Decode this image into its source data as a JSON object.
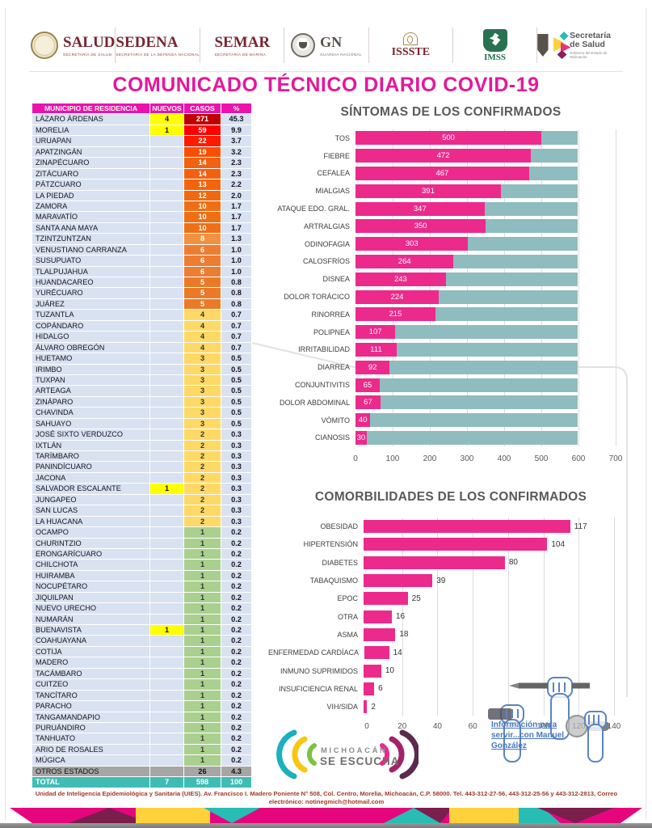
{
  "title": "COMUNICADO TÉCNICO DIARIO COVID-19",
  "header_logos": [
    {
      "name": "SALUD",
      "subtitle": "SECRETARÍA DE SALUD"
    },
    {
      "name": "SEDENA",
      "subtitle": "SECRETARÍA DE LA DEFENSA NACIONAL"
    },
    {
      "name": "SEMAR",
      "subtitle": "SECRETARÍA DE MARINA"
    },
    {
      "name": "GN",
      "subtitle": "GUARDIA NACIONAL"
    },
    {
      "name": "ISSSTE",
      "subtitle": ""
    },
    {
      "name": "IMSS",
      "subtitle": ""
    },
    {
      "name": "Secretaría de Salud",
      "subtitle": "Gobierno del Estado de Michoacán"
    }
  ],
  "table": {
    "headers": [
      "MUNICIPIO DE RESIDENCIA",
      "NUEVOS",
      "CASOS",
      "%"
    ],
    "header_bg": "#EC13AC",
    "nuevos_bg": "#FFFF00",
    "rows": [
      [
        "LÁZARO ÁRDENAS",
        "4",
        "271",
        "45.3",
        "#C00000",
        "#FFFFFF"
      ],
      [
        "MORELIA",
        "1",
        "59",
        "9.9",
        "#FF0000",
        "#FFFFFF"
      ],
      [
        "URUAPAN",
        "",
        "22",
        "3.7",
        "#FE1B00",
        "#FFFFFF"
      ],
      [
        "APATZINGÁN",
        "",
        "19",
        "3.2",
        "#F94E00",
        "#FFFFFF"
      ],
      [
        "ZINAPÉCUARO",
        "",
        "14",
        "2.3",
        "#F26011",
        "#FFFFFF"
      ],
      [
        "ZITÁCUARO",
        "",
        "14",
        "2.3",
        "#F26011",
        "#FFFFFF"
      ],
      [
        "PÁTZCUARO",
        "",
        "13",
        "2.2",
        "#F1650F",
        "#FFFFFF"
      ],
      [
        "LA PIEDAD",
        "",
        "12",
        "2.0",
        "#F0690F",
        "#FFFFFF"
      ],
      [
        "ZAMORA",
        "",
        "10",
        "1.7",
        "#EF6F15",
        "#FFFFFF"
      ],
      [
        "MARAVATÍO",
        "",
        "10",
        "1.7",
        "#EF6F15",
        "#FFFFFF"
      ],
      [
        "SANTA ANA MAYA",
        "",
        "10",
        "1.7",
        "#EF6F15",
        "#FFFFFF"
      ],
      [
        "TZINTZUNTZAN",
        "",
        "8",
        "1.3",
        "#F2913F",
        "#FFFFFF"
      ],
      [
        "VENUSTIANO CARRANZA",
        "",
        "6",
        "1.0",
        "#ED7D31",
        "#FFFFFF"
      ],
      [
        "SUSUPUATO",
        "",
        "6",
        "1.0",
        "#ED7D31",
        "#FFFFFF"
      ],
      [
        "TLALPUJAHUA",
        "",
        "6",
        "1.0",
        "#ED7D31",
        "#FFFFFF"
      ],
      [
        "HUANDACAREO",
        "",
        "5",
        "0.8",
        "#EA7A27",
        "#FFFFFF"
      ],
      [
        "YURÉCUARO",
        "",
        "5",
        "0.8",
        "#EA7A27",
        "#FFFFFF"
      ],
      [
        "JUÁREZ",
        "",
        "5",
        "0.8",
        "#EA7A27",
        "#FFFFFF"
      ],
      [
        "TUZANTLA",
        "",
        "4",
        "0.7",
        "#FFD966",
        "#333333"
      ],
      [
        "COPÁNDARO",
        "",
        "4",
        "0.7",
        "#FFD966",
        "#333333"
      ],
      [
        "HIDALGO",
        "",
        "4",
        "0.7",
        "#FFD966",
        "#333333"
      ],
      [
        "ÁLVARO OBREGÓN",
        "",
        "4",
        "0.7",
        "#FFD966",
        "#333333"
      ],
      [
        "HUETAMO",
        "",
        "3",
        "0.5",
        "#FFD966",
        "#333333"
      ],
      [
        "IRIMBO",
        "",
        "3",
        "0.5",
        "#FFD966",
        "#333333"
      ],
      [
        "TUXPAN",
        "",
        "3",
        "0.5",
        "#FFD966",
        "#333333"
      ],
      [
        "ARTEAGA",
        "",
        "3",
        "0.5",
        "#FFD966",
        "#333333"
      ],
      [
        "ZINÁPARO",
        "",
        "3",
        "0.5",
        "#FFD966",
        "#333333"
      ],
      [
        "CHAVINDA",
        "",
        "3",
        "0.5",
        "#FFD966",
        "#333333"
      ],
      [
        "SAHUAYO",
        "",
        "3",
        "0.5",
        "#FFD966",
        "#333333"
      ],
      [
        "JOSÉ SIXTO VERDUZCO",
        "",
        "2",
        "0.3",
        "#FFD966",
        "#333333"
      ],
      [
        "IXTLÁN",
        "",
        "2",
        "0.3",
        "#FFD966",
        "#333333"
      ],
      [
        "TARÍMBARO",
        "",
        "2",
        "0.3",
        "#FFD966",
        "#333333"
      ],
      [
        "PANINDÍCUARO",
        "",
        "2",
        "0.3",
        "#FFD966",
        "#333333"
      ],
      [
        "JACONA",
        "",
        "2",
        "0.3",
        "#FFD966",
        "#333333"
      ],
      [
        "SALVADOR ESCALANTE",
        "1",
        "2",
        "0.3",
        "#FFD966",
        "#333333"
      ],
      [
        "JUNGAPEO",
        "",
        "2",
        "0.3",
        "#FFD966",
        "#333333"
      ],
      [
        "SAN LUCAS",
        "",
        "2",
        "0.3",
        "#FFD966",
        "#333333"
      ],
      [
        "LA HUACANA",
        "",
        "2",
        "0.3",
        "#FFD966",
        "#333333"
      ],
      [
        "OCAMPO",
        "",
        "1",
        "0.2",
        "#A9D08E",
        "#333333"
      ],
      [
        "CHURINTZIO",
        "",
        "1",
        "0.2",
        "#A9D08E",
        "#333333"
      ],
      [
        "ERONGARÍCUARO",
        "",
        "1",
        "0.2",
        "#A9D08E",
        "#333333"
      ],
      [
        "CHILCHOTA",
        "",
        "1",
        "0.2",
        "#A9D08E",
        "#333333"
      ],
      [
        "HUIRAMBA",
        "",
        "1",
        "0.2",
        "#A9D08E",
        "#333333"
      ],
      [
        "NOCUPÉTARO",
        "",
        "1",
        "0.2",
        "#A9D08E",
        "#333333"
      ],
      [
        "JIQUILPAN",
        "",
        "1",
        "0.2",
        "#A9D08E",
        "#333333"
      ],
      [
        "NUEVO URECHO",
        "",
        "1",
        "0.2",
        "#A9D08E",
        "#333333"
      ],
      [
        "NUMARÁN",
        "",
        "1",
        "0.2",
        "#A9D08E",
        "#333333"
      ],
      [
        "BUENAVISTA",
        "1",
        "1",
        "0.2",
        "#A9D08E",
        "#333333"
      ],
      [
        "COAHUAYANA",
        "",
        "1",
        "0.2",
        "#A9D08E",
        "#333333"
      ],
      [
        "COTIJA",
        "",
        "1",
        "0.2",
        "#A9D08E",
        "#333333"
      ],
      [
        "MADERO",
        "",
        "1",
        "0.2",
        "#A9D08E",
        "#333333"
      ],
      [
        "TACÁMBARO",
        "",
        "1",
        "0.2",
        "#A9D08E",
        "#333333"
      ],
      [
        "CUITZEO",
        "",
        "1",
        "0.2",
        "#A9D08E",
        "#333333"
      ],
      [
        "TANCÍTARO",
        "",
        "1",
        "0.2",
        "#A9D08E",
        "#333333"
      ],
      [
        "PARACHO",
        "",
        "1",
        "0.2",
        "#A9D08E",
        "#333333"
      ],
      [
        "TANGAMANDAPIO",
        "",
        "1",
        "0.2",
        "#A9D08E",
        "#333333"
      ],
      [
        "PURUÁNDIRO",
        "",
        "1",
        "0.2",
        "#A9D08E",
        "#333333"
      ],
      [
        "TANHUATO",
        "",
        "1",
        "0.2",
        "#A9D08E",
        "#333333"
      ],
      [
        "ARIO DE ROSALES",
        "",
        "1",
        "0.2",
        "#A9D08E",
        "#333333"
      ],
      [
        "MÚGICA",
        "",
        "1",
        "0.2",
        "#A9D08E",
        "#333333"
      ]
    ],
    "otros_estados": [
      "OTROS ESTADOS",
      "",
      "26",
      "4.3"
    ],
    "total": [
      "TOTAL",
      "7",
      "598",
      "100"
    ]
  },
  "chart_data": [
    {
      "type": "bar",
      "orientation": "horizontal",
      "stacked": true,
      "title": "SÍNTOMAS DE LOS CONFIRMADOS",
      "categories": [
        "TOS",
        "FIEBRE",
        "CEFALEA",
        "MIALGIAS",
        "ATAQUE EDO. GRAL.",
        "ARTRALGIAS",
        "ODINOFAGIA",
        "CALOSFRÍOS",
        "DISNEA",
        "DOLOR TORÁCICO",
        "RINORREA",
        "POLIPNEA",
        "IRRITABILIDAD",
        "DIARREA",
        "CONJUNTIVITIS",
        "DOLOR ABDOMINAL",
        "VÓMITO",
        "CIANOSIS"
      ],
      "values": [
        500,
        472,
        467,
        391,
        347,
        350,
        303,
        264,
        243,
        224,
        215,
        107,
        111,
        92,
        65,
        67,
        40,
        30
      ],
      "stack_total": 598,
      "xlim": [
        0,
        700
      ],
      "xticks": [
        0,
        100,
        200,
        300,
        400,
        500,
        600,
        700
      ],
      "bar_color": "#EC2A8C",
      "remainder_color": "#8FBCBE",
      "grid": true,
      "value_label_position": "inside"
    },
    {
      "type": "bar",
      "orientation": "horizontal",
      "stacked": false,
      "title": "COMORBILIDADES DE LOS CONFIRMADOS",
      "categories": [
        "OBESIDAD",
        "HIPERTENSIÓN",
        "DIABETES",
        "TABAQUISMO",
        "EPOC",
        "OTRA",
        "ASMA",
        "ENFERMEDAD CARDÍACA",
        "INMUNO SUPRIMIDOS",
        "INSUFICIENCIA RENAL",
        "VIH/SIDA"
      ],
      "values": [
        117,
        104,
        80,
        39,
        25,
        16,
        18,
        14,
        10,
        6,
        2
      ],
      "xlim": [
        0,
        140
      ],
      "xticks": [
        0,
        20,
        40,
        60,
        80,
        100,
        120,
        140
      ],
      "bar_color": "#EC2A8C",
      "grid": true,
      "value_label_position": "outside"
    }
  ],
  "listen_logo": {
    "line1": "MICHOACÁN",
    "line2": "SE ESCUCHA"
  },
  "fists_text": [
    "Información para",
    "servir...con Manuel",
    "González"
  ],
  "footer": {
    "line1": "Unidad de Inteligencia Epidemiológica y Sanitaria (UIES). Av. Francisco I. Madero Poniente N° 508, Col. Centro, Morelia, Michoacán, C.P. 58000. Tel. 443-312-27-56, 443-312-25-56 y 443-312-2813, Correo",
    "line2": "electrónico: notinegmich@hotmail.com"
  },
  "colors": {
    "title_magenta": "#E3189B",
    "bar_pink": "#EC2A8C",
    "bar_teal_remainder": "#8FBCBE",
    "table_header_magenta": "#EC13AC",
    "total_row_teal": "#3FBDB5",
    "otros_row_gray": "#A6A6A6",
    "row_bg": "#D9E2F1",
    "nuevos_highlight": "#FFFF00"
  }
}
